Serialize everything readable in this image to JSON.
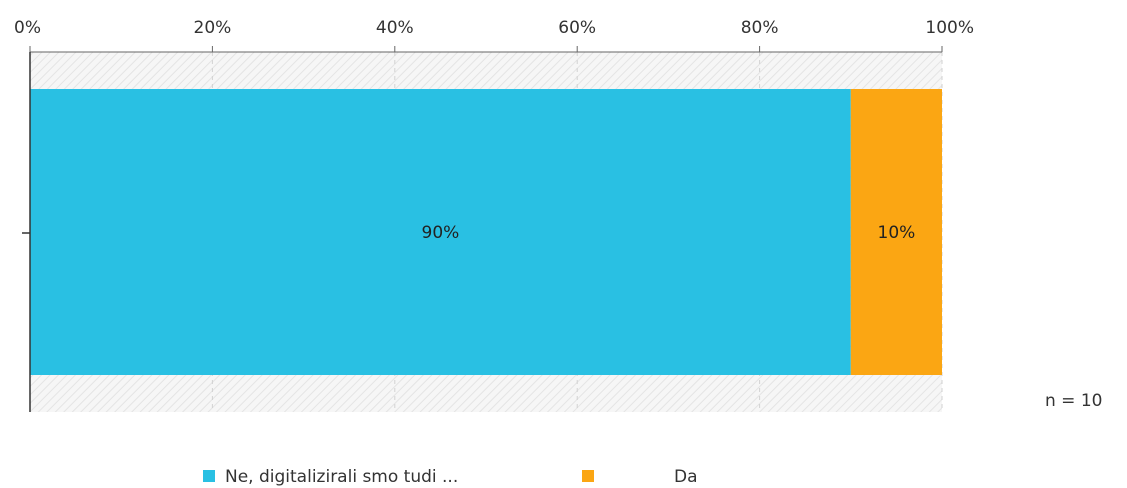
{
  "chart_data": {
    "type": "bar",
    "orientation": "horizontal",
    "stacked": true,
    "normalized": true,
    "categories": [
      ""
    ],
    "series": [
      {
        "name": "Ne, digitalizirali smo tudi ...",
        "values": [
          90
        ],
        "label": "90%",
        "color": "#29C0E3"
      },
      {
        "name": "Da",
        "values": [
          10
        ],
        "label": "10%",
        "color": "#FBA613"
      }
    ],
    "x_ticks": [
      "0%",
      "20%",
      "40%",
      "60%",
      "80%",
      "100%"
    ],
    "xlim": [
      0,
      100
    ],
    "grid": true,
    "legend_position": "bottom",
    "annotation": "n = 10"
  }
}
